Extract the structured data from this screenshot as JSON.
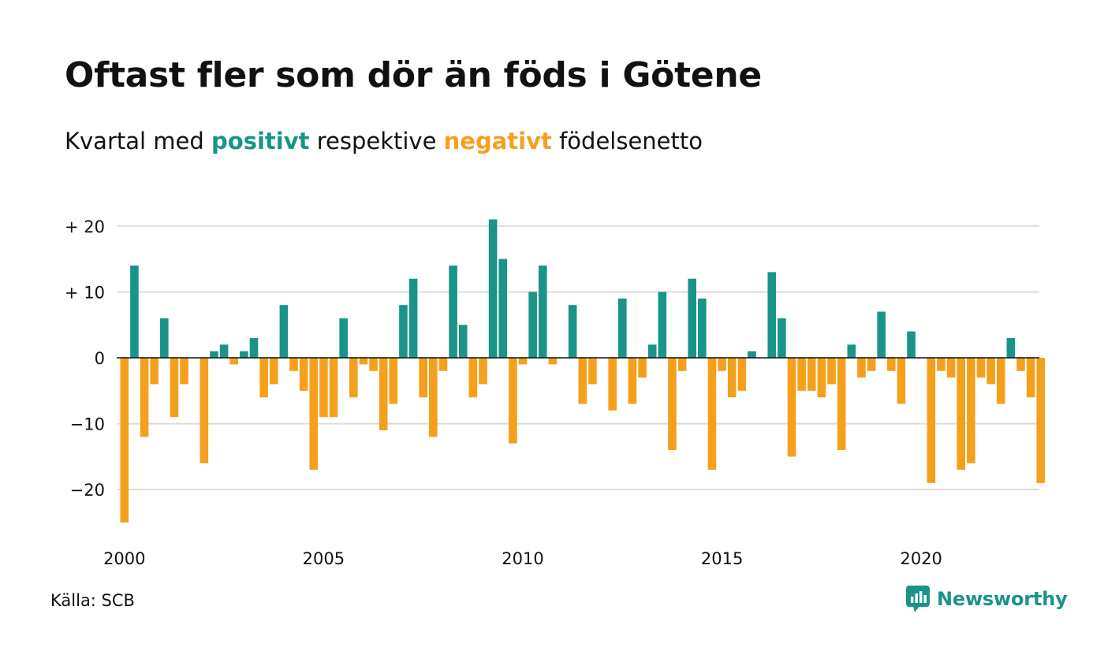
{
  "title": "Oftast fler som dör än föds i Götene",
  "subtitle": {
    "prefix": "Kvartal med ",
    "positive_word": "positivt",
    "middle": " respektive ",
    "negative_word": "negativt",
    "suffix": " födelsenetto"
  },
  "source": "Källa: SCB",
  "brand": {
    "name": "Newsworthy",
    "icon": "newsworthy-logo-icon"
  },
  "colors": {
    "positive": "#1a9488",
    "negative": "#f5a01c",
    "grid": "#dddddd",
    "zero_line": "#111111"
  },
  "chart_data": {
    "type": "bar",
    "x_start": "2000 Q1",
    "series_name": "",
    "values": [
      -25,
      14,
      -12,
      -4,
      6,
      -9,
      -4,
      0,
      -16,
      1,
      2,
      -1,
      1,
      3,
      -6,
      -4,
      8,
      -2,
      -5,
      -17,
      -9,
      -9,
      6,
      -6,
      -1,
      -2,
      -11,
      -7,
      8,
      12,
      -6,
      -12,
      -2,
      14,
      5,
      -6,
      -4,
      21,
      15,
      -13,
      -1,
      10,
      14,
      -1,
      0,
      8,
      -7,
      -4,
      0,
      -8,
      9,
      -7,
      -3,
      2,
      10,
      -14,
      -2,
      12,
      9,
      -17,
      -2,
      -6,
      -5,
      1,
      0,
      13,
      6,
      -15,
      -5,
      -5,
      -6,
      -4,
      -14,
      2,
      -3,
      -2,
      7,
      -2,
      -7,
      4,
      0,
      -19,
      -2,
      -3,
      -17,
      -16,
      -3,
      -4,
      -7,
      3,
      -2,
      -6,
      -19
    ],
    "x_ticks": [
      "2000",
      "2005",
      "2010",
      "2015",
      "2020"
    ],
    "y_ticks": [
      {
        "value": 20,
        "label": "+ 20"
      },
      {
        "value": 10,
        "label": "+ 10"
      },
      {
        "value": 0,
        "label": "0"
      },
      {
        "value": -10,
        "label": "−10"
      },
      {
        "value": -20,
        "label": "−20"
      }
    ],
    "ylim": [
      -25,
      21
    ],
    "grid": true,
    "legend": "none"
  }
}
